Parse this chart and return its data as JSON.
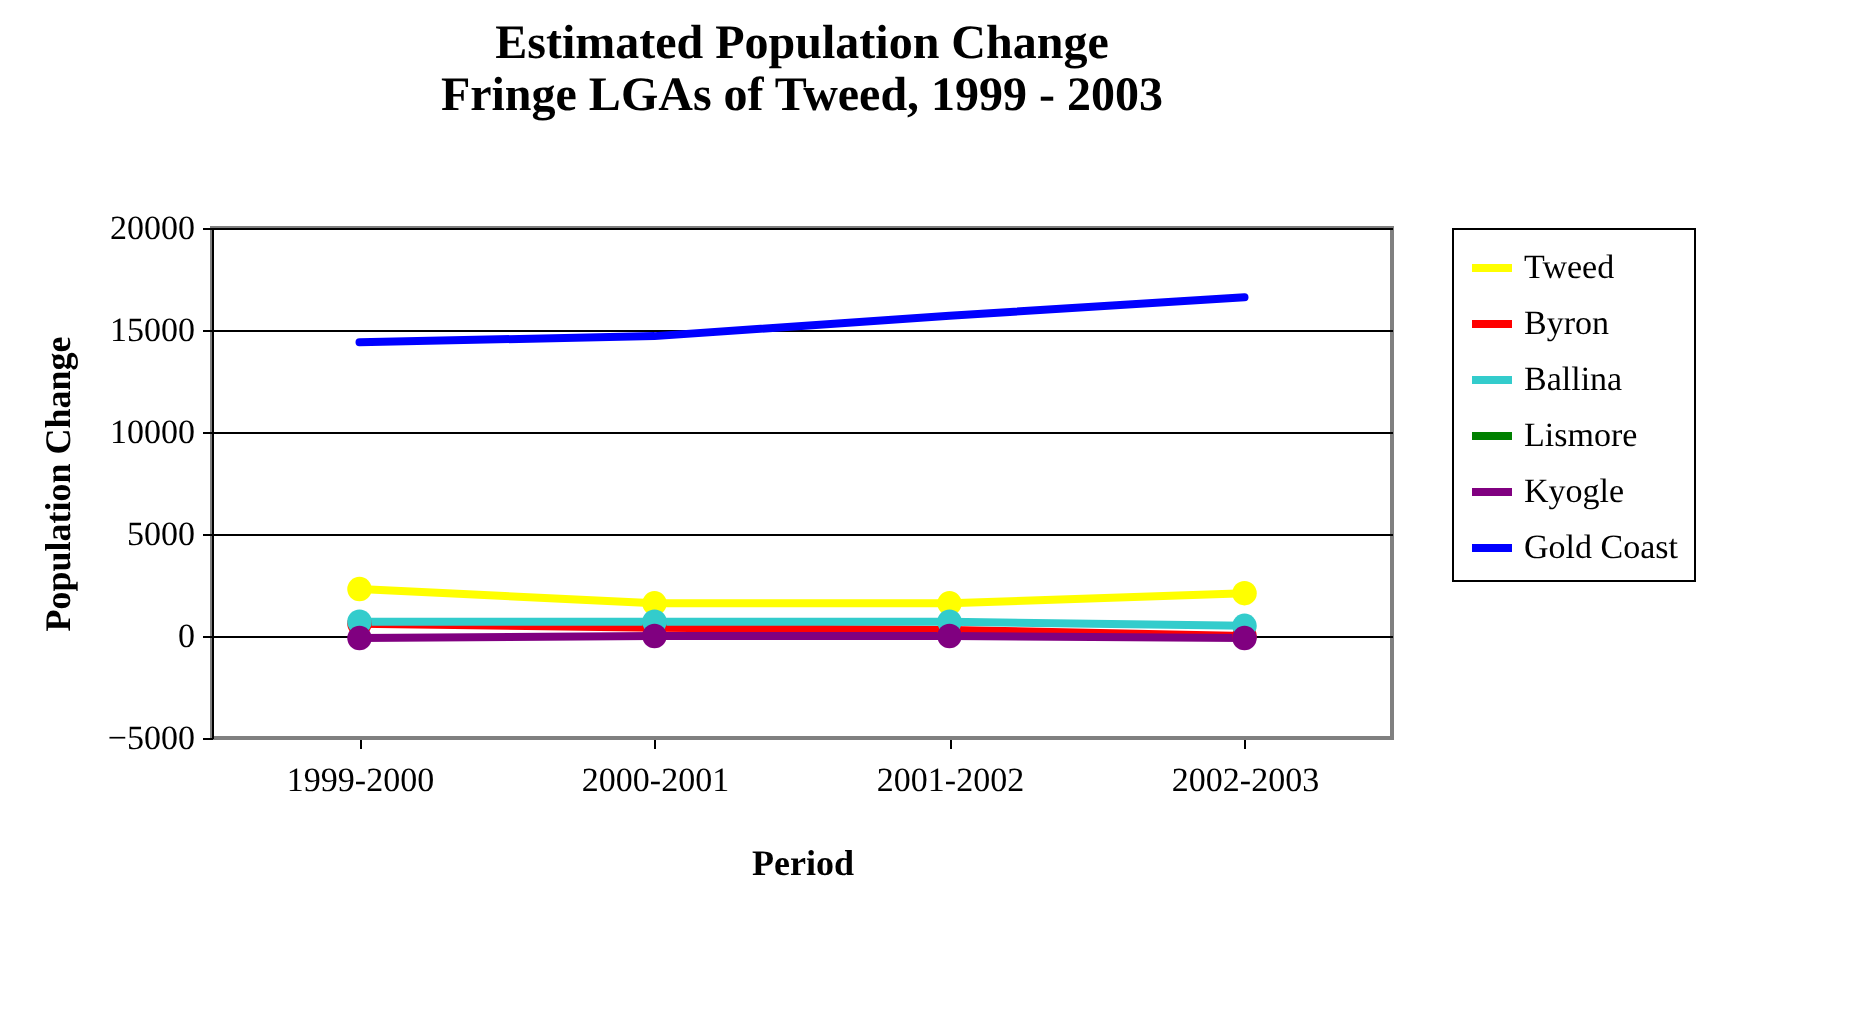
{
  "chart_data": {
    "type": "line",
    "title": [
      "Estimated Population Change",
      "Fringe LGAs of Tweed, 1999 - 2003"
    ],
    "xlabel": "Period",
    "ylabel": "Population Change",
    "categories": [
      "1999-2000",
      "2000-2001",
      "2001-2002",
      "2002-2003"
    ],
    "series": [
      {
        "name": "Tweed",
        "color": "#ffff00",
        "values": [
          2300,
          1600,
          1600,
          2100
        ]
      },
      {
        "name": "Byron",
        "color": "#ff0000",
        "values": [
          600,
          400,
          300,
          0
        ]
      },
      {
        "name": "Ballina",
        "color": "#33cccc",
        "values": [
          700,
          700,
          700,
          500
        ]
      },
      {
        "name": "Lismore",
        "color": "#008000",
        "values": [
          null,
          null,
          null,
          null
        ]
      },
      {
        "name": "Kyogle",
        "color": "#800080",
        "values": [
          -100,
          0,
          0,
          -100
        ]
      },
      {
        "name": "Gold Coast",
        "color": "#0000ff",
        "values": [
          14400,
          14700,
          15700,
          16600
        ],
        "marker": "none"
      }
    ],
    "ylim": [
      -5000,
      20000
    ],
    "yticks": [
      -5000,
      0,
      5000,
      10000,
      15000,
      20000
    ],
    "grid": "y",
    "legend": "right",
    "marker": "circle",
    "line_style": "solid"
  }
}
